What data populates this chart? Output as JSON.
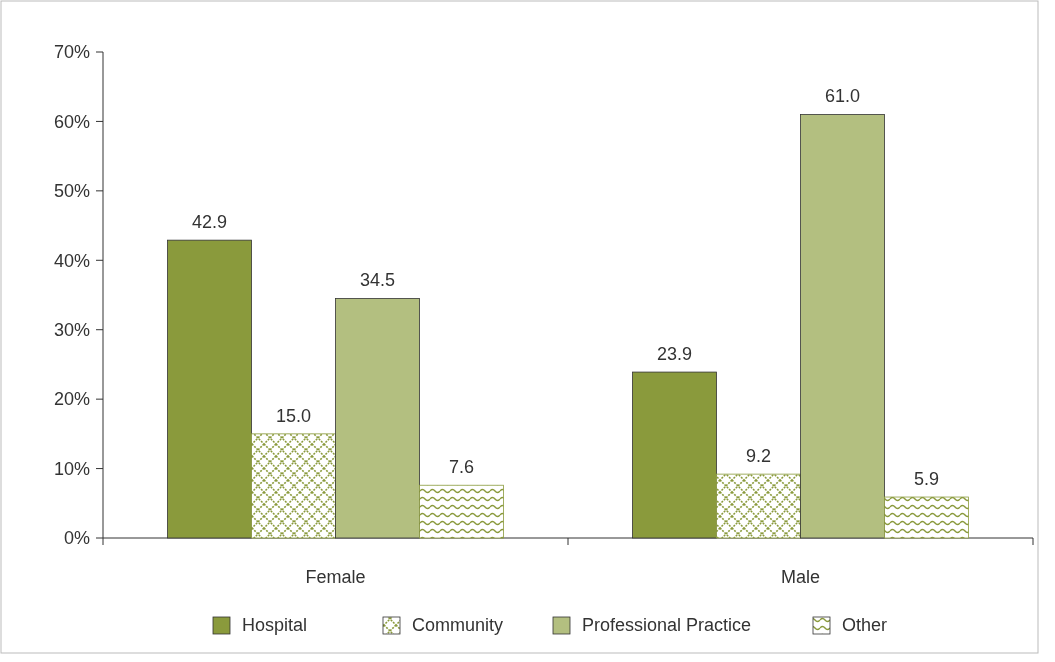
{
  "chart_data": {
    "type": "bar",
    "categories": [
      "Female",
      "Male"
    ],
    "series": [
      {
        "name": "Hospital",
        "color": "#8a9a3c",
        "values": [
          42.9,
          23.9
        ],
        "value_labels": [
          "42.9",
          "23.9"
        ]
      },
      {
        "name": "Community",
        "color": "#8a9a3c",
        "values": [
          15.0,
          9.2
        ],
        "value_labels": [
          "15.0",
          "9.2"
        ]
      },
      {
        "name": "Professional Practice",
        "color": "#b3bf80",
        "values": [
          34.5,
          61.0
        ],
        "value_labels": [
          "34.5",
          "61.0"
        ]
      },
      {
        "name": "Other",
        "color": "#8a9a3c",
        "values": [
          7.6,
          5.9
        ],
        "value_labels": [
          "7.6",
          "5.9"
        ]
      }
    ],
    "ylim": [
      0,
      70
    ],
    "yticks": [
      {
        "value": 0,
        "label": "0%"
      },
      {
        "value": 10,
        "label": "10%"
      },
      {
        "value": 20,
        "label": "20%"
      },
      {
        "value": 30,
        "label": "30%"
      },
      {
        "value": 40,
        "label": "40%"
      },
      {
        "value": 50,
        "label": "50%"
      },
      {
        "value": 60,
        "label": "60%"
      },
      {
        "value": 70,
        "label": "70%"
      }
    ],
    "grid": false,
    "legend": "bottom"
  }
}
